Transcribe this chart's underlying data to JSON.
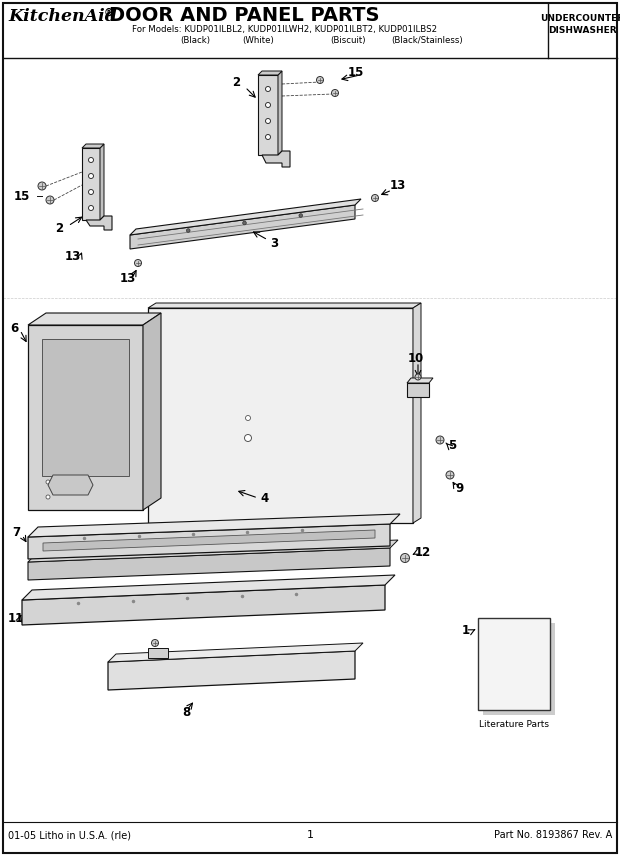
{
  "title_kitchenaid": "KitchenAid",
  "title_dot": "®",
  "title_main": " DOOR AND PANEL PARTS",
  "subtitle": "For Models: KUDP01ILBL2, KUDP01ILWH2, KUDP01ILBT2, KUDP01ILBS2",
  "subtitle2_black": "(Black)",
  "subtitle2_white": "(White)",
  "subtitle2_biscuit": "(Biscuit)",
  "subtitle2_bs": "(Black/Stainless)",
  "top_right_line1": "UNDERCOUNTER",
  "top_right_line2": "DISHWASHER",
  "footer_left": "01-05 Litho in U.S.A. (rle)",
  "footer_center": "1",
  "footer_right": "Part No. 8193867 Rev. A",
  "literature_label": "Literature Parts",
  "bg_color": "#ffffff",
  "border_color": "#000000",
  "line_color": "#111111",
  "gray_light": "#e0e0e0",
  "gray_mid": "#bbbbbb",
  "gray_dark": "#888888"
}
